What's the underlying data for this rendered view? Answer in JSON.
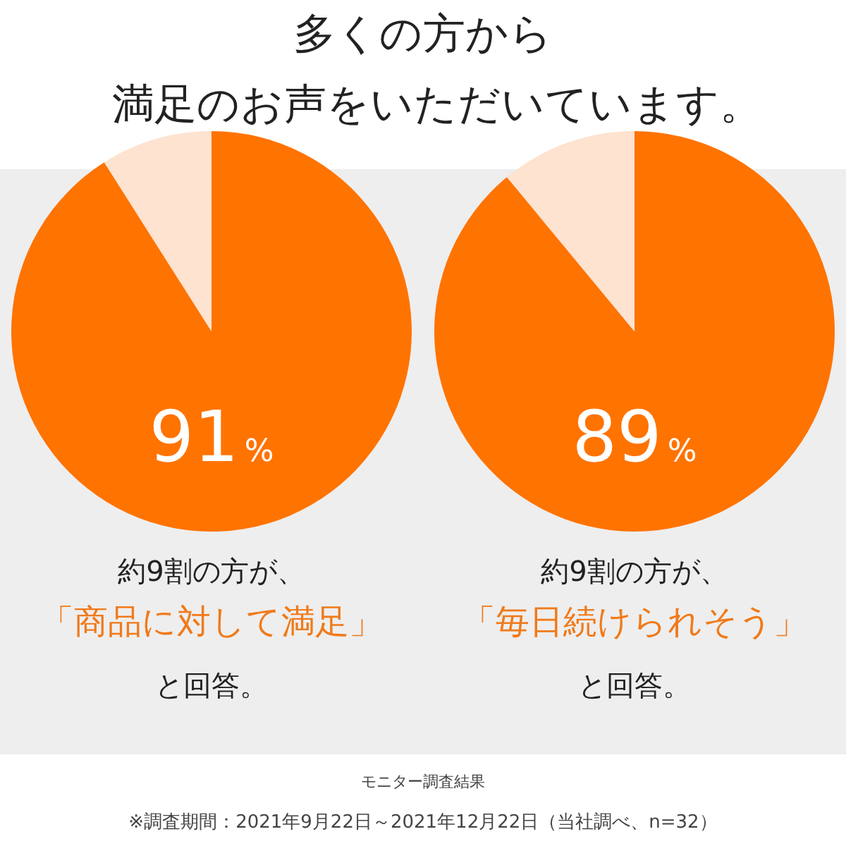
{
  "chart_data": [
    {
      "type": "pie",
      "title": "多くの方から",
      "subtitle": "満足のお声をいただいています。",
      "categories": [
        null,
        null
      ],
      "values": [
        91,
        9
      ],
      "colors": [
        "#ff7300",
        "#fde3d0"
      ],
      "value_labels": [
        "91%",
        null
      ],
      "annotations": [
        "約9割の方が、",
        "「商品に対して満足」",
        "と回答。"
      ]
    },
    {
      "type": "pie",
      "categories": [
        null,
        null
      ],
      "values": [
        89,
        11
      ],
      "colors": [
        "#ff7300",
        "#fde3d0"
      ],
      "value_labels": [
        "89%",
        null
      ],
      "annotations": [
        "約9割の方が、",
        "「毎日続けられそう」",
        "と回答。",
        "モニター調査結果",
        "※調査期間：2021年9月22日～2021年12月22日（当社調べ、n=32）"
      ]
    }
  ]
}
